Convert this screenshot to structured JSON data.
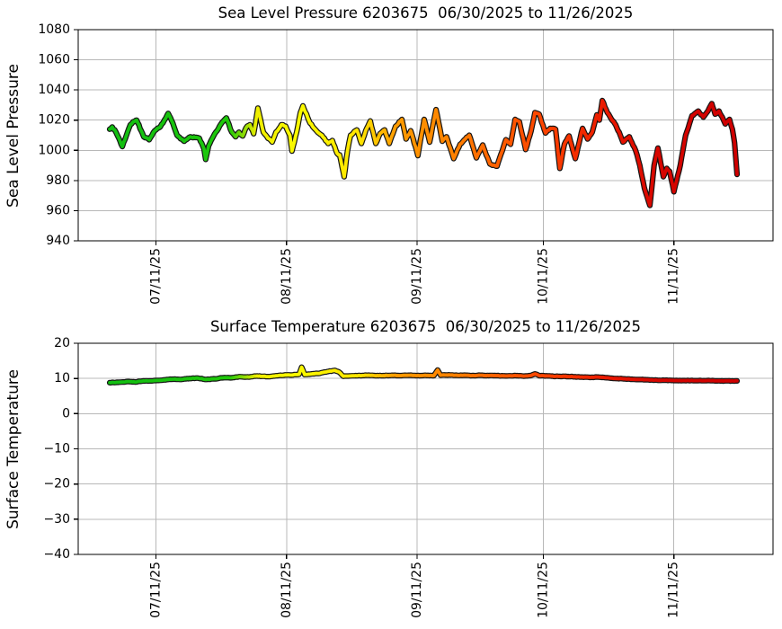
{
  "figure": {
    "background": "#ffffff",
    "station_id": "6203675",
    "date_range": "06/30/2025 to 11/26/2025"
  },
  "colors": {
    "grid": "#b8b8b8",
    "axis": "#000000",
    "marker_edge": "#141414",
    "colormap": [
      [
        0.0,
        "#12BE12"
      ],
      [
        0.19,
        "#1EC80A"
      ],
      [
        0.235,
        "#F0EE00"
      ],
      [
        0.3,
        "#FAFA00"
      ],
      [
        0.4,
        "#FFE400"
      ],
      [
        0.455,
        "#FF9C00"
      ],
      [
        0.55,
        "#FF8000"
      ],
      [
        0.62,
        "#FF5E00"
      ],
      [
        0.72,
        "#F93800"
      ],
      [
        0.8,
        "#E81500"
      ],
      [
        0.88,
        "#D60500"
      ],
      [
        1.0,
        "#CF0000"
      ]
    ]
  },
  "chart_data": [
    {
      "type": "line",
      "title": "Sea Level Pressure 6203675  06/30/2025 to 11/26/2025",
      "ylabel": "Sea Level Pressure",
      "xlabel": "",
      "ylim": [
        940,
        1080
      ],
      "yticks": [
        940,
        960,
        980,
        1000,
        1020,
        1040,
        1060,
        1080
      ],
      "x_domain_days": [
        0,
        149
      ],
      "xtick_days": [
        11,
        42,
        73,
        103,
        134
      ],
      "xtick_labels": [
        "07/11/25",
        "08/11/25",
        "09/11/25",
        "10/11/25",
        "11/11/25"
      ],
      "grid": true,
      "legend": "none",
      "series": [
        {
          "name": "sea_level_pressure",
          "points": [
            [
              0,
              1014
            ],
            [
              0.6,
              1015.5
            ],
            [
              1.5,
              1012
            ],
            [
              2.2,
              1008
            ],
            [
              3,
              1002.5
            ],
            [
              4,
              1010
            ],
            [
              4.9,
              1017
            ],
            [
              5.6,
              1019
            ],
            [
              6.4,
              1020
            ],
            [
              7.5,
              1013
            ],
            [
              8.1,
              1009
            ],
            [
              9.4,
              1007
            ],
            [
              10.7,
              1013
            ],
            [
              12,
              1015.5
            ],
            [
              13,
              1020
            ],
            [
              13.9,
              1024.5
            ],
            [
              15,
              1018
            ],
            [
              16,
              1010
            ],
            [
              17.7,
              1006
            ],
            [
              19.2,
              1009
            ],
            [
              20.3,
              1008.5
            ],
            [
              21.3,
              1008
            ],
            [
              22.4,
              1001
            ],
            [
              22.8,
              994
            ],
            [
              23.5,
              1003
            ],
            [
              25.2,
              1012
            ],
            [
              26.7,
              1018.5
            ],
            [
              27.7,
              1021.5
            ],
            [
              29,
              1012
            ],
            [
              29.9,
              1009
            ],
            [
              30.7,
              1012
            ],
            [
              31.6,
              1009.5
            ],
            [
              32.4,
              1015
            ],
            [
              33.3,
              1017
            ],
            [
              34.2,
              1011
            ],
            [
              35.2,
              1028
            ],
            [
              36.5,
              1012
            ],
            [
              37.6,
              1008
            ],
            [
              38.6,
              1005.5
            ],
            [
              39.5,
              1012
            ],
            [
              40.8,
              1017
            ],
            [
              41.8,
              1016
            ],
            [
              42.8,
              1010
            ],
            [
              43.3,
              999.5
            ],
            [
              44.4,
              1012
            ],
            [
              45.3,
              1025
            ],
            [
              45.9,
              1029.5
            ],
            [
              47.6,
              1018
            ],
            [
              49.1,
              1013
            ],
            [
              50.4,
              1010
            ],
            [
              51.9,
              1004.5
            ],
            [
              52.9,
              1006.5
            ],
            [
              54,
              998
            ],
            [
              54.6,
              997
            ],
            [
              55.7,
              982.5
            ],
            [
              56.5,
              1000
            ],
            [
              57.2,
              1010
            ],
            [
              58.7,
              1013.5
            ],
            [
              59.8,
              1004.5
            ],
            [
              60.8,
              1013
            ],
            [
              61.9,
              1019.5
            ],
            [
              63.2,
              1004.5
            ],
            [
              64.2,
              1011
            ],
            [
              65.3,
              1013.5
            ],
            [
              66.4,
              1004.5
            ],
            [
              67.9,
              1016
            ],
            [
              69.4,
              1020.5
            ],
            [
              70.4,
              1007.5
            ],
            [
              71.5,
              1013
            ],
            [
              73.2,
              996.5
            ],
            [
              74.7,
              1020.5
            ],
            [
              76,
              1005.5
            ],
            [
              77.5,
              1027
            ],
            [
              79,
              1006
            ],
            [
              80,
              1009
            ],
            [
              81.7,
              994.5
            ],
            [
              83.2,
              1004
            ],
            [
              85.4,
              1010
            ],
            [
              87.1,
              995
            ],
            [
              88.6,
              1003.5
            ],
            [
              90.3,
              991
            ],
            [
              92,
              989.5
            ],
            [
              94.1,
              1007
            ],
            [
              95.2,
              1004
            ],
            [
              96.3,
              1020.5
            ],
            [
              97.3,
              1019
            ],
            [
              98.8,
              1000.5
            ],
            [
              100.1,
              1013
            ],
            [
              101,
              1025
            ],
            [
              102,
              1024
            ],
            [
              103.5,
              1011.5
            ],
            [
              104.6,
              1014.5
            ],
            [
              105.9,
              1014
            ],
            [
              106.9,
              988
            ],
            [
              108,
              1004
            ],
            [
              109.1,
              1009.5
            ],
            [
              110.6,
              994.5
            ],
            [
              112.3,
              1014.5
            ],
            [
              113.5,
              1007.5
            ],
            [
              114.6,
              1012
            ],
            [
              115.7,
              1023.5
            ],
            [
              116.3,
              1020
            ],
            [
              117,
              1033
            ],
            [
              118.2,
              1025
            ],
            [
              119.9,
              1018
            ],
            [
              121,
              1012
            ],
            [
              121.9,
              1005.5
            ],
            [
              123.4,
              1009
            ],
            [
              124.9,
              1000
            ],
            [
              125.9,
              990
            ],
            [
              127,
              975
            ],
            [
              128.3,
              963.5
            ],
            [
              129.3,
              990
            ],
            [
              130.2,
              1001.5
            ],
            [
              131.5,
              982.5
            ],
            [
              132.3,
              988
            ],
            [
              133,
              986
            ],
            [
              134,
              972.5
            ],
            [
              135.5,
              990
            ],
            [
              136.8,
              1010
            ],
            [
              138.3,
              1023
            ],
            [
              139.8,
              1026
            ],
            [
              141,
              1022
            ],
            [
              141.8,
              1025
            ],
            [
              143,
              1031
            ],
            [
              143.8,
              1024
            ],
            [
              144.7,
              1026
            ],
            [
              145.5,
              1022
            ],
            [
              146.2,
              1017.5
            ],
            [
              147.2,
              1020.5
            ],
            [
              147.9,
              1014
            ],
            [
              148.4,
              1005
            ],
            [
              149,
              984
            ]
          ]
        }
      ]
    },
    {
      "type": "line",
      "title": "Surface Temperature 6203675  06/30/2025 to 11/26/2025",
      "ylabel": "Surface Temperature",
      "xlabel": "",
      "ylim": [
        -40,
        20
      ],
      "yticks": [
        -40,
        -30,
        -20,
        -10,
        0,
        10,
        20
      ],
      "x_domain_days": [
        0,
        149
      ],
      "xtick_days": [
        11,
        42,
        73,
        103,
        134
      ],
      "xtick_labels": [
        "07/11/25",
        "08/11/25",
        "09/11/25",
        "10/11/25",
        "11/11/25"
      ],
      "grid": true,
      "legend": "none",
      "series": [
        {
          "name": "surface_temperature",
          "points": [
            [
              0,
              8.8
            ],
            [
              2,
              8.9
            ],
            [
              4,
              9.1
            ],
            [
              6,
              9.0
            ],
            [
              8,
              9.3
            ],
            [
              10,
              9.3
            ],
            [
              11,
              9.4
            ],
            [
              13,
              9.6
            ],
            [
              15,
              9.8
            ],
            [
              17,
              9.7
            ],
            [
              19,
              10.0
            ],
            [
              21,
              10.1
            ],
            [
              23,
              9.7
            ],
            [
              25,
              9.9
            ],
            [
              27,
              10.2
            ],
            [
              29,
              10.2
            ],
            [
              31,
              10.5
            ],
            [
              33,
              10.4
            ],
            [
              35,
              10.7
            ],
            [
              36.5,
              10.6
            ],
            [
              38,
              10.5
            ],
            [
              40,
              10.8
            ],
            [
              42,
              11.0
            ],
            [
              43.5,
              11.0
            ],
            [
              45,
              11.2
            ],
            [
              45.6,
              13.2
            ],
            [
              46.3,
              11.1
            ],
            [
              48,
              11.3
            ],
            [
              50,
              11.5
            ],
            [
              52,
              12.0
            ],
            [
              53.5,
              12.3
            ],
            [
              54.5,
              11.8
            ],
            [
              55.5,
              10.6
            ],
            [
              57,
              10.7
            ],
            [
              59,
              10.8
            ],
            [
              61,
              10.9
            ],
            [
              63,
              10.8
            ],
            [
              65,
              10.8
            ],
            [
              67,
              10.9
            ],
            [
              69,
              10.8
            ],
            [
              71,
              10.9
            ],
            [
              73,
              10.8
            ],
            [
              75,
              10.9
            ],
            [
              77,
              10.8
            ],
            [
              77.9,
              12.4
            ],
            [
              78.6,
              10.9
            ],
            [
              80,
              11.0
            ],
            [
              82,
              10.9
            ],
            [
              84,
              10.9
            ],
            [
              86,
              10.8
            ],
            [
              88,
              10.9
            ],
            [
              90,
              10.8
            ],
            [
              92,
              10.8
            ],
            [
              94,
              10.7
            ],
            [
              96,
              10.8
            ],
            [
              98,
              10.7
            ],
            [
              100,
              10.8
            ],
            [
              101,
              11.3
            ],
            [
              102,
              10.8
            ],
            [
              104,
              10.7
            ],
            [
              106,
              10.6
            ],
            [
              108,
              10.6
            ],
            [
              110,
              10.5
            ],
            [
              112,
              10.4
            ],
            [
              114,
              10.3
            ],
            [
              116,
              10.4
            ],
            [
              118,
              10.2
            ],
            [
              120,
              10.0
            ],
            [
              122,
              9.9
            ],
            [
              124,
              9.8
            ],
            [
              126,
              9.7
            ],
            [
              128,
              9.6
            ],
            [
              130,
              9.5
            ],
            [
              132,
              9.5
            ],
            [
              134,
              9.4
            ],
            [
              136,
              9.4
            ],
            [
              138,
              9.4
            ],
            [
              140,
              9.4
            ],
            [
              142,
              9.4
            ],
            [
              144,
              9.3
            ],
            [
              146,
              9.3
            ],
            [
              148,
              9.3
            ],
            [
              149,
              9.3
            ]
          ]
        }
      ]
    }
  ]
}
